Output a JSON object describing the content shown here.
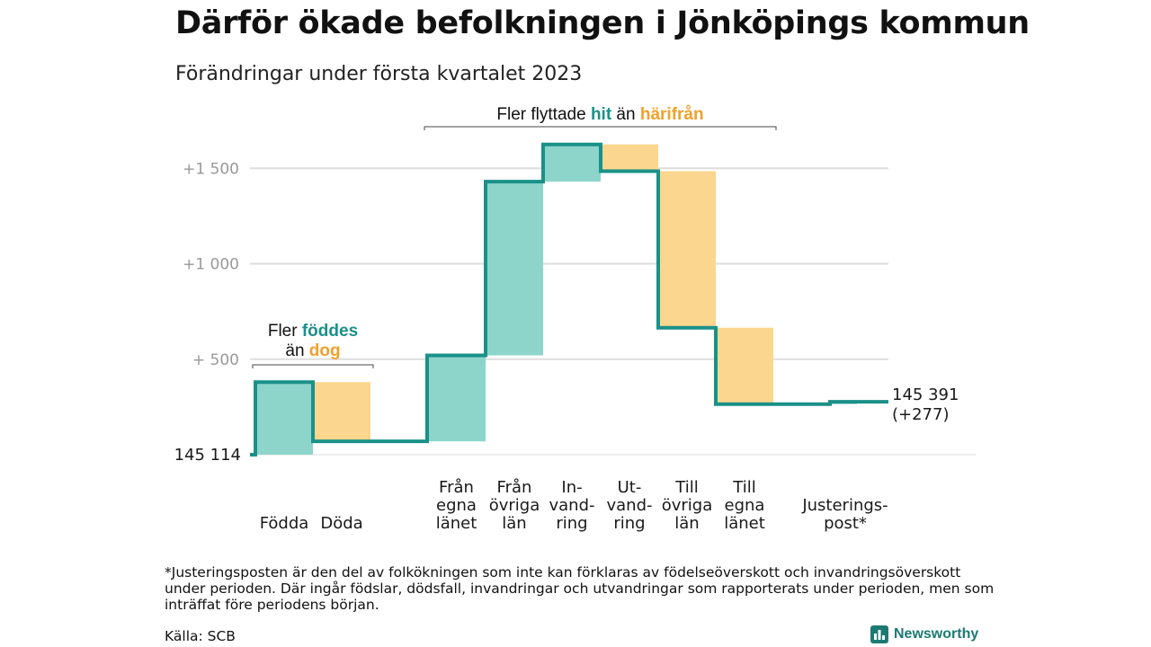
{
  "title": "Därför ökade befolkningen i Jönköpings kommun",
  "subtitle": "Förändringar under första kvartalet 2023",
  "footnote": "*Justeringsposten är den del av folkökningen som inte kan förklaras av födelseöverskott och invandringsöverskott under perioden. Där ingår födslar, dödsfall, invandringar och utvandringar som rapporterats under perioden, men som inträffat före periodens början.",
  "source": "Källa: SCB",
  "logo": {
    "name": "Newsworthy",
    "icon": "bar-chart-icon"
  },
  "colors": {
    "increase": "#8dd5cb",
    "decrease": "#fbd68e",
    "line": "#1a9188",
    "grid": "#dddddd",
    "axis_text": "#999999",
    "hit": "#1a9188",
    "harifran": "#f0a12c"
  },
  "chart_data": {
    "type": "waterfall",
    "start_value": 145114,
    "start_label": "145 114",
    "end_value": 145391,
    "end_label": "145 391",
    "end_change_label": "(+277)",
    "y_axis": {
      "min": 0,
      "max": 1500,
      "ticks": [
        500,
        1000,
        1500
      ],
      "tick_labels": [
        "+ 500",
        "+1 000",
        "+1 500"
      ]
    },
    "grid": true,
    "steps": [
      {
        "label": "Födda",
        "value": 380,
        "kind": "increase"
      },
      {
        "label": "Döda",
        "value": -310,
        "kind": "decrease"
      },
      {
        "label": "Från egna länet",
        "value": 450,
        "kind": "increase"
      },
      {
        "label": "Från övriga län",
        "value": 910,
        "kind": "increase"
      },
      {
        "label": "In-vand-ring",
        "value": 195,
        "kind": "increase"
      },
      {
        "label": "Ut-vand-ring",
        "value": -140,
        "kind": "decrease"
      },
      {
        "label": "Till övriga län",
        "value": -820,
        "kind": "decrease"
      },
      {
        "label": "Till egna länet",
        "value": -400,
        "kind": "decrease"
      },
      {
        "label": "Justerings-post*",
        "value": 12,
        "kind": "increase"
      }
    ],
    "label_groups": [
      {
        "lines": [
          "Födda"
        ],
        "steps": [
          0
        ]
      },
      {
        "lines": [
          "Döda"
        ],
        "steps": [
          1
        ]
      },
      {
        "lines": [
          "Från",
          "egna",
          "länet"
        ],
        "steps": [
          2
        ]
      },
      {
        "lines": [
          "Från",
          "övriga",
          "län"
        ],
        "steps": [
          3
        ]
      },
      {
        "lines": [
          "In-",
          "vand-",
          "ring"
        ],
        "steps": [
          4
        ]
      },
      {
        "lines": [
          "Ut-",
          "vand-",
          "ring"
        ],
        "steps": [
          5
        ]
      },
      {
        "lines": [
          "Till",
          "övriga",
          "län"
        ],
        "steps": [
          6
        ]
      },
      {
        "lines": [
          "Till",
          "egna",
          "länet"
        ],
        "steps": [
          7
        ]
      },
      {
        "lines": [
          "Justerings-",
          "post*"
        ],
        "steps": [
          8
        ]
      }
    ],
    "annotations": [
      {
        "id": "birth",
        "steps": [
          0,
          1
        ],
        "lines": [
          [
            {
              "text": "Fler ",
              "style": "plain"
            },
            {
              "text": "föddes",
              "style": "hit"
            }
          ],
          [
            {
              "text": "än ",
              "style": "plain"
            },
            {
              "text": "dog",
              "style": "harifran"
            }
          ]
        ]
      },
      {
        "id": "migration",
        "steps": [
          2,
          7
        ],
        "lines": [
          [
            {
              "text": "Fler flyttade ",
              "style": "plain"
            },
            {
              "text": "hit",
              "style": "hit"
            },
            {
              "text": " än ",
              "style": "plain"
            },
            {
              "text": "härifrån",
              "style": "harifran"
            }
          ]
        ]
      }
    ]
  }
}
